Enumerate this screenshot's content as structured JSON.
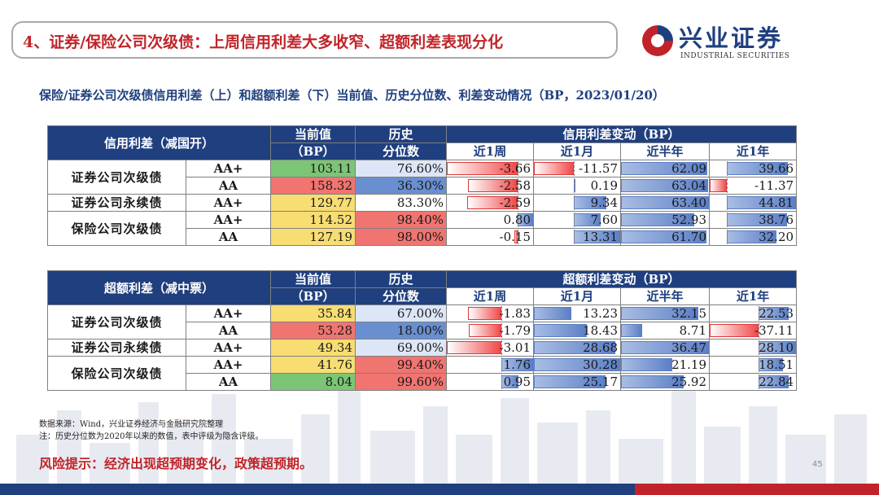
{
  "header": {
    "title": "4、证券/保险公司次级债：上周信用利差大多收窄、超额利差表现分化",
    "logo_cn": "兴业证券",
    "logo_en": "INDUSTRIAL SECURITIES"
  },
  "subtitle": "保险/证券公司次级债信用利差（上）和超额利差（下）当前值、历史分位数、利差变动情况（BP，2023/01/20）",
  "colors": {
    "navy": "#1f3f7f",
    "red": "#c0242a",
    "green_cell": "#7cc576",
    "yellow_cell": "#f7dd72",
    "orange_cell": "#f8b870",
    "red_cell": "#f07470",
    "blue_cell": "#6a8fd0",
    "lightblue_cell": "#dce6f6"
  },
  "table1": {
    "header_label": "信用利差（减国开）",
    "col_current": "当前值",
    "col_current_unit": "（BP）",
    "col_hist": "历史",
    "col_hist2": "分位数",
    "col_change": "信用利差变动（BP）",
    "periods": [
      "近1周",
      "近1月",
      "近半年",
      "近1年"
    ],
    "groups": [
      {
        "name": "证券公司次级债",
        "rows": [
          {
            "rating": "AA+",
            "current": "103.11",
            "pct": "76.60%",
            "changes": [
              "-3.66",
              "-11.57",
              "62.09",
              "39.66"
            ]
          },
          {
            "rating": "AA",
            "current": "158.32",
            "pct": "36.30%",
            "changes": [
              "-2.58",
              "0.19",
              "63.04",
              "-11.37"
            ]
          }
        ]
      },
      {
        "name": "证券公司永续债",
        "rows": [
          {
            "rating": "AA+",
            "current": "129.77",
            "pct": "83.30%",
            "changes": [
              "-2.59",
              "9.34",
              "63.40",
              "44.81"
            ]
          }
        ]
      },
      {
        "name": "保险公司次级债",
        "rows": [
          {
            "rating": "AA+",
            "current": "114.52",
            "pct": "98.40%",
            "changes": [
              "0.80",
              "7.60",
              "52.93",
              "38.76"
            ]
          },
          {
            "rating": "AA",
            "current": "127.19",
            "pct": "98.00%",
            "changes": [
              "-0.15",
              "13.31",
              "61.70",
              "32.20"
            ]
          }
        ]
      }
    ]
  },
  "table2": {
    "header_label": "超额利差（减中票）",
    "col_current": "当前值",
    "col_current_unit": "（BP）",
    "col_hist": "历史",
    "col_hist2": "分位数",
    "col_change": "超额利差变动（BP）",
    "periods": [
      "近1周",
      "近1月",
      "近半年",
      "近1年"
    ],
    "groups": [
      {
        "name": "证券公司次级债",
        "rows": [
          {
            "rating": "AA+",
            "current": "35.84",
            "pct": "67.00%",
            "changes": [
              "-1.83",
              "13.23",
              "32.15",
              "22.53"
            ]
          },
          {
            "rating": "AA",
            "current": "53.28",
            "pct": "18.00%",
            "changes": [
              "-1.79",
              "18.43",
              "8.71",
              "-37.11"
            ]
          }
        ]
      },
      {
        "name": "证券公司永续债",
        "rows": [
          {
            "rating": "AA+",
            "current": "49.34",
            "pct": "69.00%",
            "changes": [
              "-3.01",
              "28.68",
              "36.47",
              "28.10"
            ]
          }
        ]
      },
      {
        "name": "保险公司次级债",
        "rows": [
          {
            "rating": "AA+",
            "current": "41.76",
            "pct": "99.40%",
            "changes": [
              "1.76",
              "30.28",
              "21.19",
              "18.51"
            ]
          },
          {
            "rating": "AA",
            "current": "8.04",
            "pct": "99.60%",
            "changes": [
              "0.95",
              "25.17",
              "25.92",
              "22.84"
            ]
          }
        ]
      }
    ]
  },
  "notes": {
    "source": "数据来源：Wind，兴业证券经济与金融研究院整理",
    "note": "注：历史分位数为2020年以来的数值，表中评级为隐含评级。"
  },
  "risk": "风险提示：经济出现超预期变化，政策超预期。",
  "page_number": "45"
}
